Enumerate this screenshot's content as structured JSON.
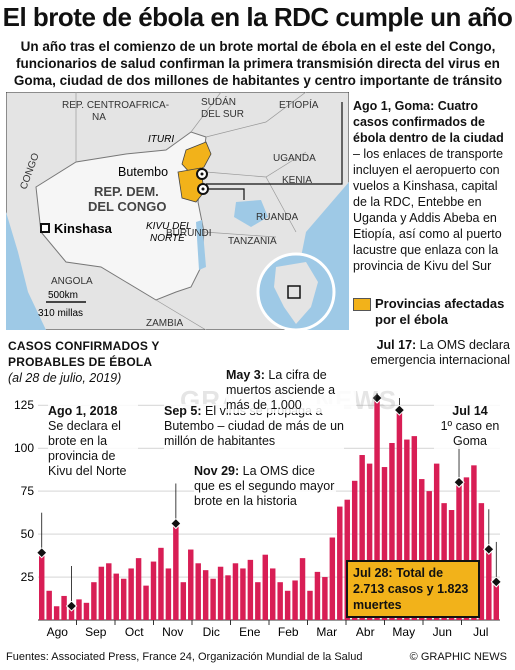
{
  "title": "El brote de ébola en la RDC cumple un año",
  "subtitle": "Un año tras el comienzo de un brote mortal de ébola en el este del Congo, funcionarios de salud confirman la primera transmisión directa del virus en Goma, ciudad de dos millones de habitantes y centro importante de tránsito",
  "map": {
    "countries": [
      "REP. CENTROAFRICA-NA",
      "SUDÁN DEL SUR",
      "ETIOPÍA",
      "UGANDA",
      "KENIA",
      "RUANDA",
      "TANZANIA",
      "BURUNDI",
      "ANGOLA",
      "ZAMBIA",
      "CONGO"
    ],
    "country_main": "REP. DEM. DEL CONGO",
    "cities": [
      "Butembo",
      "Kinshasa"
    ],
    "provinces": [
      "ITURI",
      "KIVU DEL NORTE"
    ],
    "scale": {
      "km": "500km",
      "miles": "310 millas"
    },
    "colors": {
      "affected": "#f2b21a",
      "land": "#e4e4e4",
      "water": "#9ec9e6"
    }
  },
  "side_note": {
    "heading": "Ago 1, Goma: Cuatro casos confirmados de ébola dentro de la ciudad",
    "text": "– los enlaces de transporte incluyen el aeropuerto con vuelos a Kinshasa, capital de la RDC, Entebbe en Uganda y Addis Abeba en Etiopía, así como al puerto lacustre que enlaza con la provincia de Kivu del Sur"
  },
  "legend": {
    "label": "Provincias afectadas por el ébola"
  },
  "chart_data": {
    "type": "bar",
    "title": "CASOS CONFIRMADOS Y PROBABLES DE ÉBOLA",
    "subtitle": "(al 28 de julio, 2019)",
    "ylim": [
      0,
      135
    ],
    "yticks": [
      25,
      50,
      75,
      100,
      125
    ],
    "month_labels": [
      "Ago",
      "Sep",
      "Oct",
      "Nov",
      "Dic",
      "Ene",
      "Feb",
      "Mar",
      "Abr",
      "May",
      "Jun",
      "Jul"
    ],
    "values": [
      38,
      17,
      8,
      14,
      7,
      12,
      10,
      22,
      31,
      33,
      27,
      24,
      30,
      36,
      20,
      34,
      42,
      30,
      55,
      22,
      41,
      33,
      29,
      24,
      31,
      26,
      33,
      30,
      35,
      22,
      38,
      30,
      22,
      17,
      23,
      36,
      17,
      28,
      25,
      48,
      66,
      70,
      81,
      96,
      91,
      128,
      89,
      103,
      121,
      105,
      107,
      82,
      75,
      91,
      68,
      64,
      79,
      83,
      90,
      68,
      40,
      21
    ],
    "color": "#d81e55"
  },
  "annotations": {
    "ago1": {
      "date": "Ago 1, 2018",
      "text": "Se declara el brote en la provincia de Kivu del Norte"
    },
    "sep5": {
      "date": "Sep 5:",
      "text": "El virus se propaga a Butembo – ciudad de más de un millón de habitantes"
    },
    "nov29": {
      "date": "Nov 29:",
      "text": "La OMS dice que es el segundo mayor brote en la historia"
    },
    "may3": {
      "date": "May 3:",
      "text": "La cifra de muertos asciende a más de 1.000"
    },
    "jul17": {
      "date": "Jul 17:",
      "text": "La OMS declara emergencia internacional"
    },
    "jul14": {
      "date": "Jul 14",
      "text": "1º caso en Goma"
    },
    "jul28": {
      "text": "Jul 28: Total de 2.713 casos y 1.823 muertes"
    }
  },
  "watermark": "GRAPHIC NEWS",
  "footer": {
    "sources": "Fuentes: Associated Press, France 24, Organización Mundial de la Salud",
    "credit": "© GRAPHIC NEWS"
  }
}
